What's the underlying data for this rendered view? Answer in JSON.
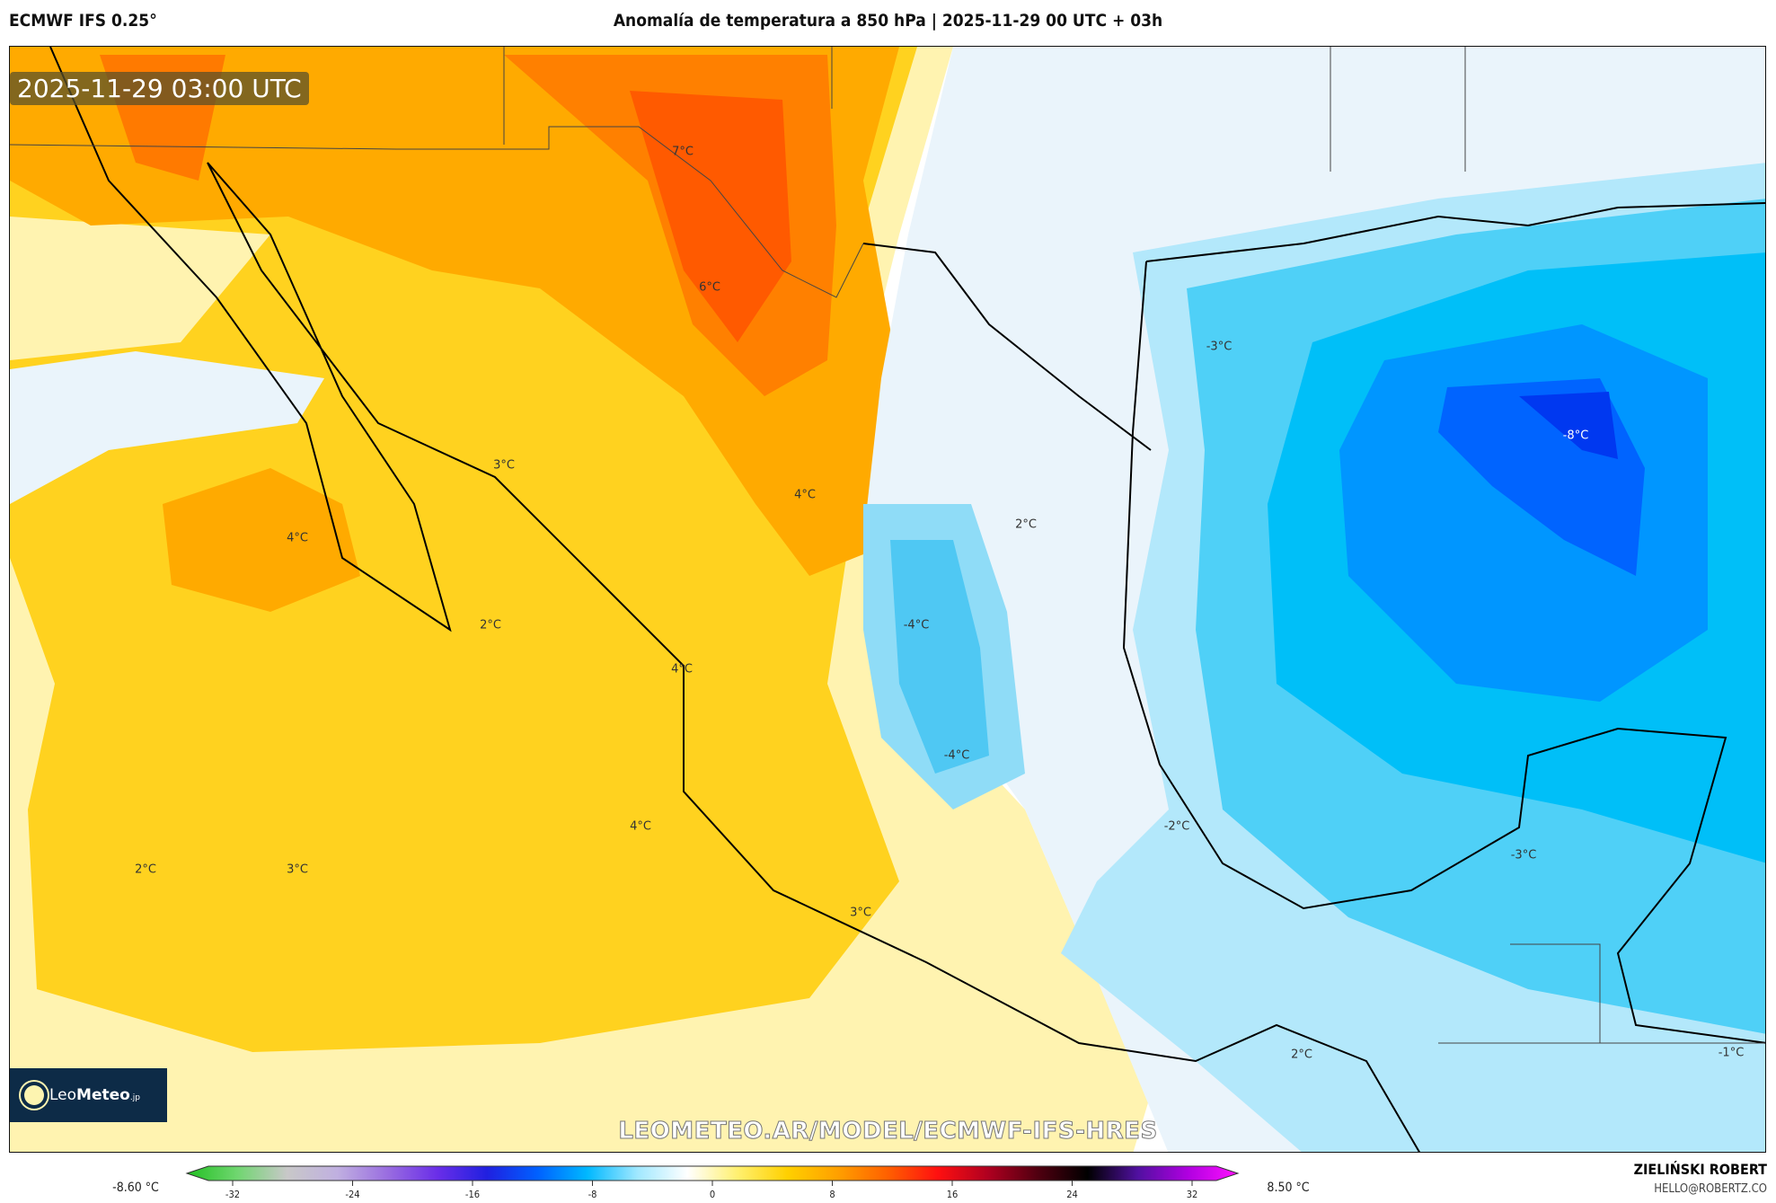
{
  "header": {
    "model": "ECMWF IFS 0.25°",
    "title": "Anomalía de temperatura a 850 hPa | 2025-11-29 00 UTC + 03h"
  },
  "map": {
    "timestamp": "2025-11-29 03:00 UTC",
    "labels": [
      {
        "text": "7°C"
      },
      {
        "text": "6°C"
      },
      {
        "text": "3°C"
      },
      {
        "text": "4°C"
      },
      {
        "text": "4°C"
      },
      {
        "text": "2°C"
      },
      {
        "text": "2°C"
      },
      {
        "text": "-4°C"
      },
      {
        "text": "4°C"
      },
      {
        "text": "-4°C"
      },
      {
        "text": "4°C"
      },
      {
        "text": "-2°C"
      },
      {
        "text": "2°C"
      },
      {
        "text": "3°C"
      },
      {
        "text": "3°C"
      },
      {
        "text": "-3°C"
      },
      {
        "text": "-3°C"
      },
      {
        "text": "-8°C"
      },
      {
        "text": "2°C"
      },
      {
        "text": "-1°C"
      }
    ],
    "logo": {
      "text_light": "Leo",
      "text_bold": "Meteo",
      "suffix": ".jp"
    },
    "watermark": "LEOMETEO.AR/MODEL/ECMWF-IFS-HRES"
  },
  "colorbar": {
    "min_label": "-8.60 °C",
    "max_label": "8.50 °C",
    "ticks": [
      "-32",
      "-24",
      "-16",
      "-8",
      "0",
      "8",
      "16",
      "24",
      "32"
    ],
    "colors": [
      "#22c022",
      "#6fd66f",
      "#c8c8c8",
      "#c0b0e0",
      "#9a6ee0",
      "#6a2ee8",
      "#2020e0",
      "#0060ff",
      "#00b8ff",
      "#a0e8ff",
      "#ffffff",
      "#fff070",
      "#ffd000",
      "#ffa000",
      "#ff6000",
      "#ff1010",
      "#b00020",
      "#500010",
      "#000000",
      "#5010a0",
      "#b000e0",
      "#ff10ff"
    ]
  },
  "credits": {
    "author": "ZIELIŃSKI ROBERT",
    "email": "HELLO@ROBERTZ.CO"
  }
}
